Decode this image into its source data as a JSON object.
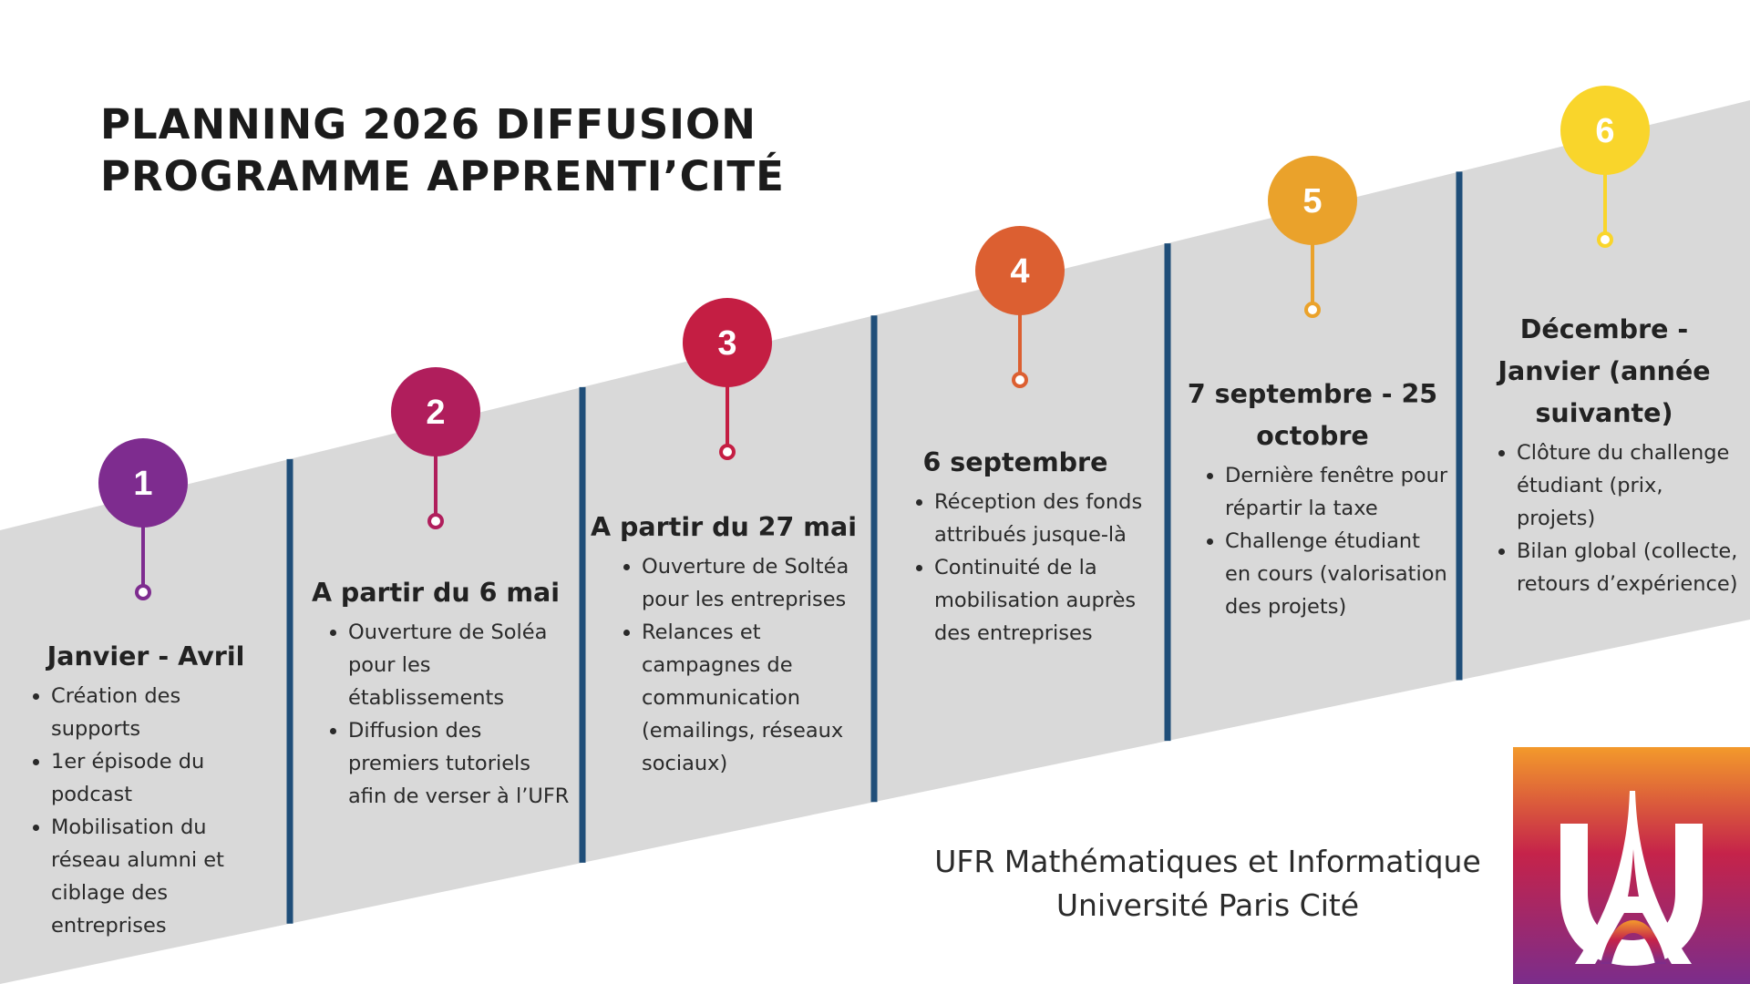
{
  "title": {
    "line1": "PLANNING 2026 DIFFUSION",
    "line2": "PROGRAMME APPRENTI’CITÉ"
  },
  "colors": {
    "band": "#d9d9d9",
    "divider": "#1f4e79",
    "pins": [
      "#7e2c8f",
      "#b01e5c",
      "#c41e43",
      "#dc5f31",
      "#eaa22b",
      "#f9d52b"
    ]
  },
  "steps": [
    {
      "number": "1",
      "date": "Janvier - Avril",
      "bullets": [
        "Création des supports",
        "1er épisode du podcast",
        "Mobilisation du réseau alumni et ciblage des entreprises"
      ]
    },
    {
      "number": "2",
      "date": "A partir du 6 mai",
      "bullets": [
        "Ouverture de Soléa pour les établissements",
        "Diffusion des premiers tutoriels afin de verser à l’UFR"
      ]
    },
    {
      "number": "3",
      "date": "A partir du 27 mai",
      "bullets": [
        "Ouverture de Soltéa pour les entreprises",
        "Relances et campagnes de communication (emailings, réseaux sociaux)"
      ]
    },
    {
      "number": "4",
      "date": "6 septembre",
      "bullets": [
        "Réception des fonds attribués jusque-là",
        "Continuité de la mobilisation auprès des entreprises"
      ]
    },
    {
      "number": "5",
      "date_line1": "7 septembre - 25",
      "date_line2": "octobre",
      "bullets": [
        "Dernière fenêtre pour répartir la taxe",
        "Challenge étudiant en cours (valorisation des projets)"
      ]
    },
    {
      "number": "6",
      "date_line1": "Décembre -",
      "date_line2": "Janvier (année",
      "date_line3": "suivante)",
      "bullets": [
        "Clôture du challenge étudiant (prix, projets)",
        " Bilan global (collecte, retours d’expérience)"
      ]
    }
  ],
  "footer": {
    "line1": "UFR Mathématiques et Informatique",
    "line2": "Université Paris Cité"
  },
  "logo": {
    "icon": "universite-paris-cite-logo"
  }
}
